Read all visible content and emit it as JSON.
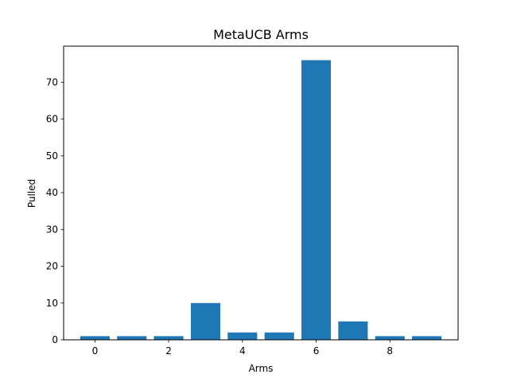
{
  "chart_data": {
    "type": "bar",
    "title": "MetaUCB Arms",
    "xlabel": "Arms",
    "ylabel": "Pulled",
    "x": [
      0,
      1,
      2,
      3,
      4,
      5,
      6,
      7,
      8,
      9
    ],
    "values": [
      1,
      1,
      1,
      10,
      2,
      2,
      76,
      5,
      1,
      1
    ],
    "xlim": [
      -0.85,
      9.85
    ],
    "ylim": [
      0,
      79.8
    ],
    "xticks": [
      0,
      2,
      4,
      6,
      8
    ],
    "yticks": [
      0,
      10,
      20,
      30,
      40,
      50,
      60,
      70
    ],
    "bar_color": "#1f77b4",
    "grid": false
  }
}
